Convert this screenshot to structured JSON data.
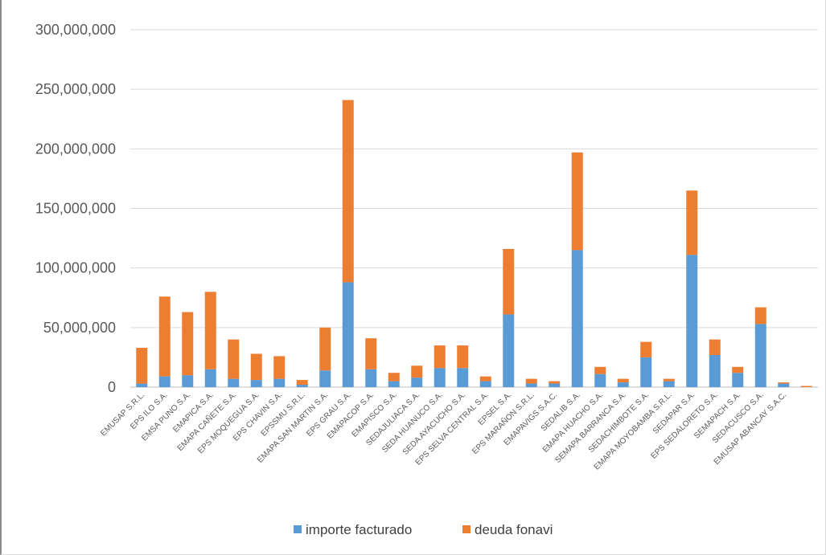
{
  "chart_data": {
    "type": "bar",
    "stacked": true,
    "categories": [
      "EMUSAP S.R.L.",
      "EPS ILO S.A.",
      "EMSA PUNO S.A.",
      "EMAPICA S.A.",
      "EMAPA CAÑETE S.A.",
      "EPS MOQUEGUA S.A.",
      "EPS CHAVIN S.A.",
      "EPSSMU S.R.L.",
      "EMAPA SAN MARTIN S.A.",
      "EPS GRAU S.A.",
      "EMAPACOP S.A.",
      "EMAPISCO S.A.",
      "SEDAJULIACA S.A.",
      "SEDA HUANUCO S.A.",
      "SEDA AYACUCHO S.A.",
      "EPS SELVA CENTRAL S.A.",
      "EPSEL S.A.",
      "EPS MARAÑON S.R.L.",
      "EMAPAVIGS S.A.C.",
      "SEDALIB S.A.",
      "EMAPA HUACHO S.A.",
      "SEMAPA BARRANCA S.A.",
      "SEDACHIMBOTE S.A.",
      "EMAPA MOYOBAMBA S.R.L.",
      "SEDAPAR S.A.",
      "EPS SEDALORETO S.A.",
      "SEMAPACH S.A.",
      "SEDACUSCO S.A.",
      "EMUSAP ABANCAY S.A.C.",
      ""
    ],
    "series": [
      {
        "name": "importe facturado",
        "color": "#5b9bd5",
        "values": [
          3000000,
          9000000,
          10000000,
          15000000,
          7000000,
          6000000,
          7000000,
          2000000,
          14000000,
          88000000,
          15000000,
          5000000,
          8000000,
          16000000,
          16000000,
          5000000,
          61000000,
          3000000,
          3000000,
          115000000,
          11000000,
          4000000,
          25000000,
          5000000,
          111000000,
          27000000,
          12000000,
          53000000,
          3000000,
          0
        ]
      },
      {
        "name": "deuda fonavi",
        "color": "#ed7d31",
        "values": [
          30000000,
          67000000,
          53000000,
          65000000,
          33000000,
          22000000,
          19000000,
          4000000,
          36000000,
          153000000,
          26000000,
          7000000,
          10000000,
          19000000,
          19000000,
          4000000,
          55000000,
          4000000,
          2000000,
          82000000,
          6000000,
          3000000,
          13000000,
          2000000,
          54000000,
          13000000,
          5000000,
          14000000,
          1000000,
          1000000
        ]
      }
    ],
    "ylim": [
      0,
      300000000
    ],
    "yticks": [
      "0",
      "50,000,000",
      "100,000,000",
      "150,000,000",
      "200,000,000",
      "250,000,000",
      "300,000,000"
    ],
    "ytick_values": [
      0,
      50000000,
      100000000,
      150000000,
      200000000,
      250000000,
      300000000
    ],
    "grid": true,
    "legend_position": "bottom"
  }
}
